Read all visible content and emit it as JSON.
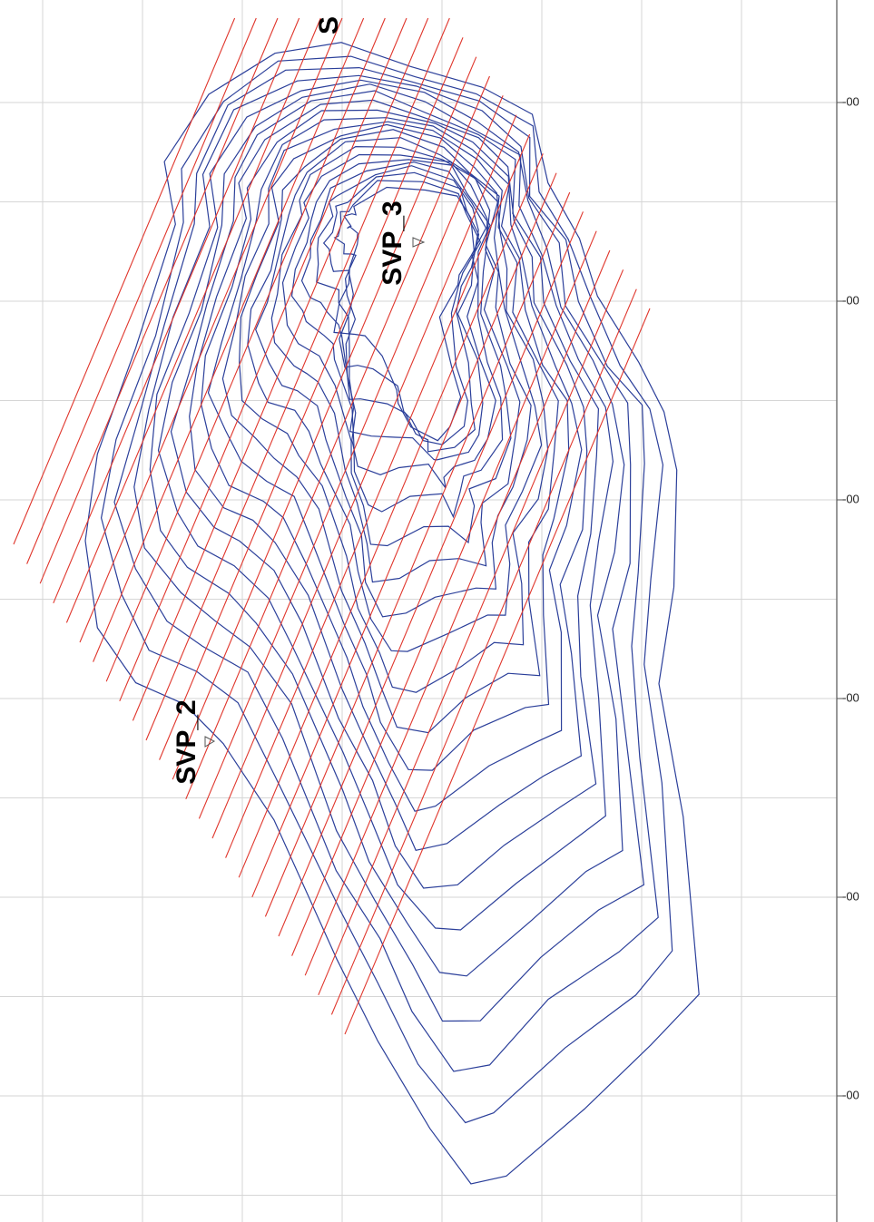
{
  "labels": {
    "top": "S",
    "svp3": "SVP_3",
    "svp2": "SVP_2"
  },
  "axis_labels": [
    "-00",
    "-00",
    "-00",
    "-00",
    "-00",
    "-00"
  ]
}
